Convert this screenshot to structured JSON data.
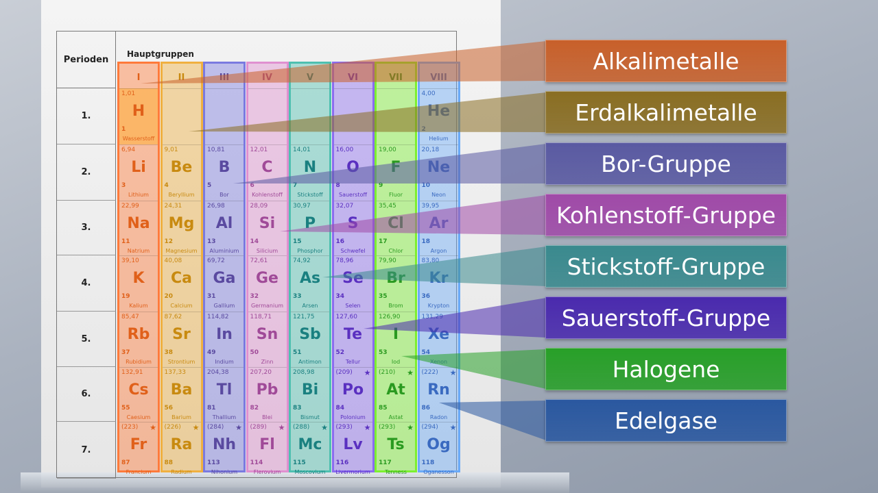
{
  "table": {
    "periods_header": "Perioden",
    "groups_header": "Hauptgruppen",
    "periods": [
      "1.",
      "2.",
      "3.",
      "4.",
      "5.",
      "6.",
      "7."
    ],
    "groups": [
      {
        "numeral": "I",
        "color": "#ff7a3a",
        "text": "#e0601a",
        "elements": [
          {
            "mass": "1,01",
            "symbol": "H",
            "number": "1",
            "name": "Wasserstoff"
          },
          {
            "mass": "6,94",
            "symbol": "Li",
            "number": "3",
            "name": "Lithium"
          },
          {
            "mass": "22,99",
            "symbol": "Na",
            "number": "11",
            "name": "Natrium"
          },
          {
            "mass": "39,10",
            "symbol": "K",
            "number": "19",
            "name": "Kalium"
          },
          {
            "mass": "85,47",
            "symbol": "Rb",
            "number": "37",
            "name": "Rubidium"
          },
          {
            "mass": "132,91",
            "symbol": "Cs",
            "number": "55",
            "name": "Caesium"
          },
          {
            "mass": "(223)",
            "symbol": "Fr",
            "number": "87",
            "name": "Francium",
            "radioactive": true
          }
        ]
      },
      {
        "numeral": "II",
        "color": "#f0b040",
        "text": "#c88a10",
        "elements": [
          null,
          {
            "mass": "9,01",
            "symbol": "Be",
            "number": "4",
            "name": "Beryllium"
          },
          {
            "mass": "24,31",
            "symbol": "Mg",
            "number": "12",
            "name": "Magnesium"
          },
          {
            "mass": "40,08",
            "symbol": "Ca",
            "number": "20",
            "name": "Calcium"
          },
          {
            "mass": "87,62",
            "symbol": "Sr",
            "number": "38",
            "name": "Strontium"
          },
          {
            "mass": "137,33",
            "symbol": "Ba",
            "number": "56",
            "name": "Barium"
          },
          {
            "mass": "(226)",
            "symbol": "Ra",
            "number": "88",
            "name": "Radium",
            "radioactive": true
          }
        ]
      },
      {
        "numeral": "III",
        "color": "#7a7ae0",
        "text": "#5a4aa0",
        "elements": [
          null,
          {
            "mass": "10,81",
            "symbol": "B",
            "number": "5",
            "name": "Bor"
          },
          {
            "mass": "26,98",
            "symbol": "Al",
            "number": "13",
            "name": "Aluminium"
          },
          {
            "mass": "69,72",
            "symbol": "Ga",
            "number": "31",
            "name": "Gallium"
          },
          {
            "mass": "114,82",
            "symbol": "In",
            "number": "49",
            "name": "Indium"
          },
          {
            "mass": "204,38",
            "symbol": "Tl",
            "number": "81",
            "name": "Thallium"
          },
          {
            "mass": "(284)",
            "symbol": "Nh",
            "number": "113",
            "name": "Nihonium",
            "radioactive": true
          }
        ]
      },
      {
        "numeral": "IV",
        "color": "#e090d0",
        "text": "#a04a98",
        "elements": [
          null,
          {
            "mass": "12,01",
            "symbol": "C",
            "number": "6",
            "name": "Kohlenstoff"
          },
          {
            "mass": "28,09",
            "symbol": "Si",
            "number": "14",
            "name": "Silicium"
          },
          {
            "mass": "72,61",
            "symbol": "Ge",
            "number": "32",
            "name": "Germanium"
          },
          {
            "mass": "118,71",
            "symbol": "Sn",
            "number": "50",
            "name": "Zinn"
          },
          {
            "mass": "207,20",
            "symbol": "Pb",
            "number": "82",
            "name": "Blei"
          },
          {
            "mass": "(289)",
            "symbol": "Fl",
            "number": "114",
            "name": "Flerovium",
            "radioactive": true
          }
        ]
      },
      {
        "numeral": "V",
        "color": "#4ec0b0",
        "text": "#1a8080",
        "elements": [
          null,
          {
            "mass": "14,01",
            "symbol": "N",
            "number": "7",
            "name": "Stickstoff"
          },
          {
            "mass": "30,97",
            "symbol": "P",
            "number": "15",
            "name": "Phosphor"
          },
          {
            "mass": "74,92",
            "symbol": "As",
            "number": "33",
            "name": "Arsen"
          },
          {
            "mass": "121,75",
            "symbol": "Sb",
            "number": "51",
            "name": "Antimon"
          },
          {
            "mass": "208,98",
            "symbol": "Bi",
            "number": "83",
            "name": "Bismut"
          },
          {
            "mass": "(288)",
            "symbol": "Mc",
            "number": "115",
            "name": "Moscovium",
            "radioactive": true
          }
        ]
      },
      {
        "numeral": "VI",
        "color": "#8a6cf0",
        "text": "#5a30c0",
        "elements": [
          null,
          {
            "mass": "16,00",
            "symbol": "O",
            "number": "8",
            "name": "Sauerstoff"
          },
          {
            "mass": "32,07",
            "symbol": "S",
            "number": "16",
            "name": "Schwefel"
          },
          {
            "mass": "78,96",
            "symbol": "Se",
            "number": "34",
            "name": "Selen"
          },
          {
            "mass": "127,60",
            "symbol": "Te",
            "number": "52",
            "name": "Tellur"
          },
          {
            "mass": "(209)",
            "symbol": "Po",
            "number": "84",
            "name": "Polonium",
            "radioactive": true
          },
          {
            "mass": "(293)",
            "symbol": "Lv",
            "number": "116",
            "name": "Livermorium",
            "radioactive": true
          }
        ]
      },
      {
        "numeral": "VII",
        "color": "#7cf030",
        "text": "#2a9a20",
        "elements": [
          null,
          {
            "mass": "19,00",
            "symbol": "F",
            "number": "9",
            "name": "Fluor"
          },
          {
            "mass": "35,45",
            "symbol": "Cl",
            "number": "17",
            "name": "Chlor"
          },
          {
            "mass": "79,90",
            "symbol": "Br",
            "number": "35",
            "name": "Brom"
          },
          {
            "mass": "126,90",
            "symbol": "I",
            "number": "53",
            "name": "Iod"
          },
          {
            "mass": "(210)",
            "symbol": "At",
            "number": "85",
            "name": "Astat",
            "radioactive": true
          },
          {
            "mass": "(293)",
            "symbol": "Ts",
            "number": "117",
            "name": "Tenness",
            "radioactive": true
          }
        ]
      },
      {
        "numeral": "VIII",
        "color": "#6aaaf8",
        "text": "#3a6ac0",
        "elements": [
          {
            "mass": "4,00",
            "symbol": "He",
            "number": "2",
            "name": "Helium"
          },
          {
            "mass": "20,18",
            "symbol": "Ne",
            "number": "10",
            "name": "Neon"
          },
          {
            "mass": "39,95",
            "symbol": "Ar",
            "number": "18",
            "name": "Argon"
          },
          {
            "mass": "83,80",
            "symbol": "Kr",
            "number": "36",
            "name": "Krypton"
          },
          {
            "mass": "131,29",
            "symbol": "Xe",
            "number": "54",
            "name": "Xenon"
          },
          {
            "mass": "(222)",
            "symbol": "Rn",
            "number": "86",
            "name": "Radon",
            "radioactive": true
          },
          {
            "mass": "(294)",
            "symbol": "Og",
            "number": "118",
            "name": "Oganesson",
            "radioactive": true
          }
        ]
      }
    ]
  },
  "labels": [
    {
      "text": "Alkalimetalle",
      "color": "#c8602a"
    },
    {
      "text": "Erdalkalimetalle",
      "color": "#8a6e22"
    },
    {
      "text": "Bor-Gruppe",
      "color": "#5a5aa2"
    },
    {
      "text": "Kohlenstoff-Gruppe",
      "color": "#a04aa8"
    },
    {
      "text": "Stickstoff-Gruppe",
      "color": "#3a8a8e"
    },
    {
      "text": "Sauerstoff-Gruppe",
      "color": "#4a2aae"
    },
    {
      "text": "Halogene",
      "color": "#28a028"
    },
    {
      "text": "Edelgase",
      "color": "#2a58a0"
    }
  ]
}
